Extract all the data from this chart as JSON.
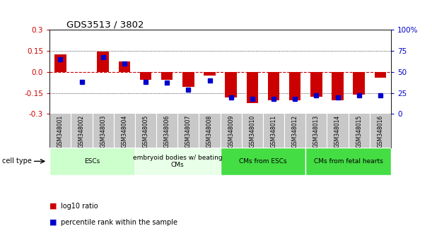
{
  "title": "GDS3513 / 3802",
  "samples": [
    "GSM348001",
    "GSM348002",
    "GSM348003",
    "GSM348004",
    "GSM348005",
    "GSM348006",
    "GSM348007",
    "GSM348008",
    "GSM348009",
    "GSM348010",
    "GSM348011",
    "GSM348012",
    "GSM348013",
    "GSM348014",
    "GSM348015",
    "GSM348016"
  ],
  "log10_ratio": [
    0.125,
    0.0,
    0.145,
    0.075,
    -0.055,
    -0.055,
    -0.105,
    -0.025,
    -0.18,
    -0.22,
    -0.2,
    -0.2,
    -0.175,
    -0.2,
    -0.16,
    -0.04
  ],
  "percentile_rank": [
    65,
    38,
    68,
    60,
    38,
    37,
    29,
    40,
    20,
    18,
    18,
    18,
    22,
    20,
    22,
    22
  ],
  "ylim": [
    -0.3,
    0.3
  ],
  "yticks_left": [
    -0.3,
    -0.15,
    0.0,
    0.15,
    0.3
  ],
  "yticks_right": [
    0,
    25,
    50,
    75,
    100
  ],
  "bar_color_red": "#cc0000",
  "bar_color_blue": "#0000cc",
  "zero_line_color": "#cc0000",
  "grid_color": "#111111",
  "bg_color": "#ffffff",
  "sample_bg_color": "#c8c8c8",
  "escs_color": "#ccffcc",
  "embryoid_color": "#e8ffe8",
  "cms_escs_color": "#44dd44",
  "cms_fetal_color": "#44dd44",
  "ct_labels": [
    "ESCs",
    "embryoid bodies w/ beating\nCMs",
    "CMs from ESCs",
    "CMs from fetal hearts"
  ],
  "ct_ranges": [
    [
      0,
      4
    ],
    [
      4,
      8
    ],
    [
      8,
      12
    ],
    [
      12,
      16
    ]
  ],
  "ct_colors": [
    "#ccffcc",
    "#e8ffe8",
    "#44dd44",
    "#44dd44"
  ]
}
